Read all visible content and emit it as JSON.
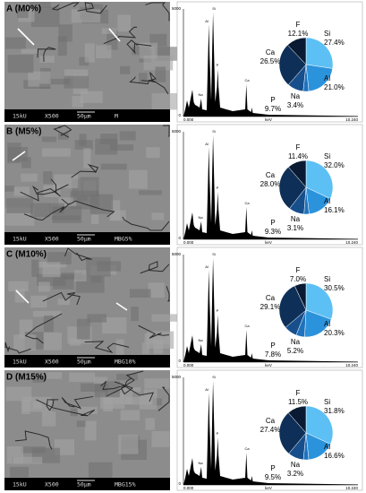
{
  "panels": [
    {
      "label": "A (M0%)",
      "sem_caption": [
        "15kU",
        "X500",
        "50μm",
        "M"
      ],
      "spectrum": {
        "y_top": "5000",
        "y_bottom": "0",
        "x_start": "0.000",
        "x_unit": "keV",
        "x_end": "10.240",
        "peaks": [
          "Si",
          "Al",
          "P",
          "Na",
          "Ca"
        ]
      }
    },
    {
      "label": "B (M5%)",
      "sem_caption": [
        "15kU",
        "X500",
        "50μm",
        "MBG5%"
      ],
      "spectrum": {
        "y_top": "5000",
        "y_bottom": "0",
        "x_start": "0.000",
        "x_unit": "keV",
        "x_end": "10.240",
        "peaks": [
          "Si",
          "Al",
          "P",
          "Na",
          "Ca"
        ]
      }
    },
    {
      "label": "C (M10%)",
      "sem_caption": [
        "15kU",
        "X500",
        "50μm",
        "MBG10%"
      ],
      "spectrum": {
        "y_top": "5000",
        "y_bottom": "0",
        "x_start": "0.000",
        "x_unit": "keV",
        "x_end": "10.240",
        "peaks": [
          "Si",
          "Al",
          "P",
          "Na",
          "Ca"
        ]
      }
    },
    {
      "label": "D (M15%)",
      "sem_caption": [
        "15kU",
        "X500",
        "50μm",
        "MBG15%"
      ],
      "spectrum": {
        "y_top": "5000",
        "y_bottom": "0",
        "x_start": "0.000",
        "x_unit": "keV",
        "x_end": "10.240",
        "peaks": [
          "Si",
          "Al",
          "P",
          "Na",
          "Ca"
        ]
      }
    }
  ],
  "chart_data": [
    {
      "type": "pie",
      "categories": [
        "Si",
        "Al",
        "Na",
        "P",
        "Ca",
        "F"
      ],
      "values": [
        27.4,
        21.0,
        3.4,
        9.7,
        26.5,
        12.1
      ],
      "value_labels": [
        "27.4%",
        "21.0%",
        "3.4%",
        "9.7%",
        "26.5%",
        "12.1%"
      ],
      "colors": [
        "#5cc0f5",
        "#2b93dc",
        "#1f72bd",
        "#174f8c",
        "#0e2f57",
        "#0a1a33"
      ]
    },
    {
      "type": "pie",
      "categories": [
        "Si",
        "Al",
        "Na",
        "P",
        "Ca",
        "F"
      ],
      "values": [
        32.0,
        16.1,
        3.1,
        9.3,
        28.0,
        11.4
      ],
      "value_labels": [
        "32.0%",
        "16.1%",
        "3.1%",
        "9.3%",
        "28.0%",
        "11.4%"
      ],
      "colors": [
        "#5cc0f5",
        "#2b93dc",
        "#1f72bd",
        "#174f8c",
        "#0e2f57",
        "#0a1a33"
      ]
    },
    {
      "type": "pie",
      "categories": [
        "Si",
        "Al",
        "Na",
        "P",
        "Ca",
        "F"
      ],
      "values": [
        30.5,
        20.3,
        5.2,
        7.8,
        29.1,
        7.0
      ],
      "value_labels": [
        "30.5%",
        "20.3%",
        "5.2%",
        "7.8%",
        "29.1%",
        "7.0%"
      ],
      "colors": [
        "#5cc0f5",
        "#2b93dc",
        "#1f72bd",
        "#174f8c",
        "#0e2f57",
        "#0a1a33"
      ]
    },
    {
      "type": "pie",
      "categories": [
        "Si",
        "Al",
        "Na",
        "P",
        "Ca",
        "F"
      ],
      "values": [
        31.8,
        16.6,
        3.2,
        9.5,
        27.4,
        11.5
      ],
      "value_labels": [
        "31.8%",
        "16.6%",
        "3.2%",
        "9.5%",
        "27.4%",
        "11.5%"
      ],
      "colors": [
        "#5cc0f5",
        "#2b93dc",
        "#1f72bd",
        "#174f8c",
        "#0e2f57",
        "#0a1a33"
      ]
    }
  ]
}
